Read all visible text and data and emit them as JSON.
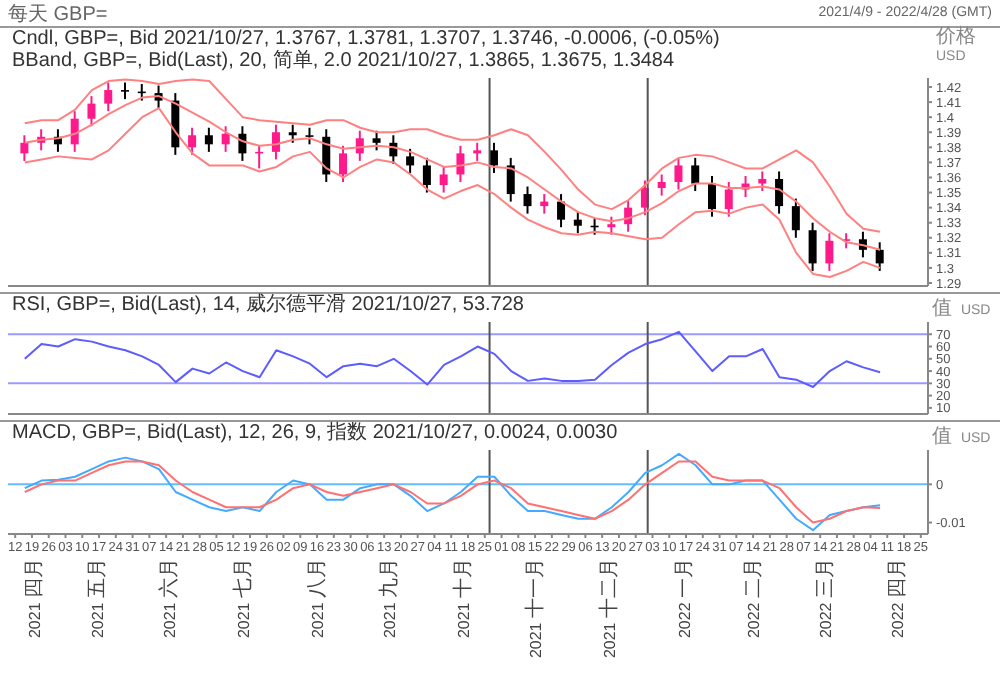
{
  "chart_data": [
    {
      "type": "candlestick",
      "title": "每天 GBP=",
      "subtitle": "2021/4/9 - 2022/4/28 (GMT)",
      "ylabel": "价格 USD",
      "annotations": [
        "Cndl, GBP=, Bid",
        "2021/10/27, 1.3767, 1.3781, 1.3707, 1.3746, -0.0006, (-0.05%)",
        "BBand, GBP=, Bid(Last), 20, 简单, 2.0",
        "2021/10/27, 1.3865, 1.3675, 1.3484"
      ],
      "x": [
        "2021-04-16",
        "2021-04-23",
        "2021-04-30",
        "2021-05-07",
        "2021-05-14",
        "2021-05-21",
        "2021-05-28",
        "2021-06-04",
        "2021-06-11",
        "2021-06-18",
        "2021-06-25",
        "2021-07-02",
        "2021-07-09",
        "2021-07-16",
        "2021-07-23",
        "2021-07-30",
        "2021-08-06",
        "2021-08-13",
        "2021-08-20",
        "2021-08-27",
        "2021-09-03",
        "2021-09-10",
        "2021-09-17",
        "2021-09-24",
        "2021-10-01",
        "2021-10-08",
        "2021-10-15",
        "2021-10-22",
        "2021-10-29",
        "2021-11-05",
        "2021-11-12",
        "2021-11-19",
        "2021-11-26",
        "2021-12-03",
        "2021-12-10",
        "2021-12-17",
        "2021-12-24",
        "2021-12-31",
        "2022-01-07",
        "2022-01-14",
        "2022-01-21",
        "2022-01-28",
        "2022-02-04",
        "2022-02-11",
        "2022-02-18",
        "2022-02-25",
        "2022-03-04",
        "2022-03-11",
        "2022-03-18",
        "2022-03-25",
        "2022-04-01",
        "2022-04-08"
      ],
      "series": [
        {
          "ohlc": [
            [
              1.376,
              1.388,
              1.371,
              1.383
            ],
            [
              1.383,
              1.392,
              1.378,
              1.387
            ],
            [
              1.387,
              1.392,
              1.377,
              1.382
            ],
            [
              1.382,
              1.404,
              1.377,
              1.399
            ],
            [
              1.399,
              1.414,
              1.394,
              1.409
            ],
            [
              1.409,
              1.423,
              1.404,
              1.418
            ],
            [
              1.418,
              1.423,
              1.412,
              1.417
            ],
            [
              1.417,
              1.422,
              1.411,
              1.416
            ],
            [
              1.416,
              1.421,
              1.406,
              1.411
            ],
            [
              1.411,
              1.416,
              1.375,
              1.38
            ],
            [
              1.38,
              1.393,
              1.375,
              1.388
            ],
            [
              1.388,
              1.393,
              1.377,
              1.382
            ],
            [
              1.382,
              1.394,
              1.377,
              1.389
            ],
            [
              1.389,
              1.394,
              1.371,
              1.376
            ],
            [
              1.376,
              1.381,
              1.366,
              1.377
            ],
            [
              1.377,
              1.395,
              1.372,
              1.39
            ],
            [
              1.39,
              1.395,
              1.383,
              1.388
            ],
            [
              1.388,
              1.393,
              1.382,
              1.387
            ],
            [
              1.387,
              1.392,
              1.357,
              1.362
            ],
            [
              1.362,
              1.381,
              1.357,
              1.376
            ],
            [
              1.376,
              1.391,
              1.371,
              1.386
            ],
            [
              1.386,
              1.391,
              1.378,
              1.383
            ],
            [
              1.383,
              1.388,
              1.369,
              1.374
            ],
            [
              1.374,
              1.379,
              1.363,
              1.368
            ],
            [
              1.368,
              1.373,
              1.35,
              1.355
            ],
            [
              1.355,
              1.367,
              1.35,
              1.362
            ],
            [
              1.362,
              1.381,
              1.357,
              1.376
            ],
            [
              1.376,
              1.383,
              1.371,
              1.378
            ],
            [
              1.378,
              1.383,
              1.363,
              1.368
            ],
            [
              1.368,
              1.373,
              1.344,
              1.349
            ],
            [
              1.349,
              1.354,
              1.336,
              1.341
            ],
            [
              1.341,
              1.349,
              1.336,
              1.344
            ],
            [
              1.344,
              1.349,
              1.327,
              1.332
            ],
            [
              1.332,
              1.337,
              1.323,
              1.328
            ],
            [
              1.328,
              1.333,
              1.322,
              1.327
            ],
            [
              1.327,
              1.334,
              1.322,
              1.329
            ],
            [
              1.329,
              1.345,
              1.324,
              1.34
            ],
            [
              1.34,
              1.358,
              1.335,
              1.353
            ],
            [
              1.353,
              1.362,
              1.348,
              1.357
            ],
            [
              1.357,
              1.373,
              1.352,
              1.368
            ],
            [
              1.368,
              1.373,
              1.351,
              1.356
            ],
            [
              1.356,
              1.361,
              1.334,
              1.339
            ],
            [
              1.339,
              1.357,
              1.334,
              1.352
            ],
            [
              1.352,
              1.361,
              1.347,
              1.356
            ],
            [
              1.356,
              1.364,
              1.351,
              1.359
            ],
            [
              1.359,
              1.364,
              1.336,
              1.341
            ],
            [
              1.341,
              1.346,
              1.32,
              1.325
            ],
            [
              1.325,
              1.33,
              1.298,
              1.303
            ],
            [
              1.303,
              1.323,
              1.298,
              1.318
            ],
            [
              1.318,
              1.323,
              1.313,
              1.319
            ],
            [
              1.319,
              1.324,
              1.307,
              1.312
            ],
            [
              1.312,
              1.317,
              1.298,
              1.303
            ]
          ],
          "colors": [
            "#ff1a8c",
            "#ff1a8c",
            "#000000",
            "#ff1a8c",
            "#ff1a8c",
            "#ff1a8c",
            "#000000",
            "#000000",
            "#000000",
            "#000000",
            "#ff1a8c",
            "#000000",
            "#ff1a8c",
            "#000000",
            "#ff1a8c",
            "#ff1a8c",
            "#000000",
            "#000000",
            "#000000",
            "#ff1a8c",
            "#ff1a8c",
            "#000000",
            "#000000",
            "#000000",
            "#000000",
            "#ff1a8c",
            "#ff1a8c",
            "#ff1a8c",
            "#000000",
            "#000000",
            "#000000",
            "#ff1a8c",
            "#000000",
            "#000000",
            "#000000",
            "#ff1a8c",
            "#ff1a8c",
            "#ff1a8c",
            "#ff1a8c",
            "#ff1a8c",
            "#000000",
            "#000000",
            "#ff1a8c",
            "#ff1a8c",
            "#ff1a8c",
            "#000000",
            "#000000",
            "#000000",
            "#ff1a8c",
            "#ff1a8c",
            "#000000",
            "#000000"
          ]
        },
        {
          "type": "line",
          "color": "#ff8080",
          "values": [
            1.396,
            1.398,
            1.398,
            1.405,
            1.418,
            1.424,
            1.425,
            1.424,
            1.422,
            1.424,
            1.425,
            1.424,
            1.412,
            1.4,
            1.398,
            1.397,
            1.396,
            1.395,
            1.398,
            1.398,
            1.393,
            1.39,
            1.39,
            1.392,
            1.392,
            1.388,
            1.385,
            1.385,
            1.388,
            1.392,
            1.388,
            1.377,
            1.365,
            1.352,
            1.342,
            1.339,
            1.345,
            1.355,
            1.366,
            1.373,
            1.375,
            1.374,
            1.37,
            1.366,
            1.366,
            1.372,
            1.378,
            1.37,
            1.354,
            1.336,
            1.326,
            1.324
          ]
        },
        {
          "type": "line",
          "color": "#ff8080",
          "values": [
            1.383,
            1.385,
            1.386,
            1.389,
            1.395,
            1.402,
            1.408,
            1.413,
            1.414,
            1.409,
            1.403,
            1.397,
            1.39,
            1.384,
            1.381,
            1.382,
            1.385,
            1.386,
            1.382,
            1.379,
            1.38,
            1.381,
            1.38,
            1.377,
            1.372,
            1.367,
            1.368,
            1.37,
            1.367,
            1.366,
            1.36,
            1.352,
            1.344,
            1.337,
            1.333,
            1.331,
            1.333,
            1.337,
            1.343,
            1.351,
            1.356,
            1.356,
            1.353,
            1.353,
            1.354,
            1.352,
            1.344,
            1.333,
            1.324,
            1.317,
            1.315,
            1.312
          ]
        },
        {
          "type": "line",
          "color": "#ff8080",
          "values": [
            1.37,
            1.372,
            1.374,
            1.373,
            1.372,
            1.378,
            1.389,
            1.4,
            1.406,
            1.39,
            1.376,
            1.368,
            1.368,
            1.368,
            1.364,
            1.367,
            1.374,
            1.377,
            1.366,
            1.36,
            1.367,
            1.372,
            1.37,
            1.362,
            1.352,
            1.346,
            1.351,
            1.355,
            1.349,
            1.34,
            1.332,
            1.327,
            1.323,
            1.322,
            1.324,
            1.323,
            1.321,
            1.319,
            1.32,
            1.329,
            1.337,
            1.338,
            1.336,
            1.34,
            1.342,
            1.332,
            1.31,
            1.296,
            1.294,
            1.298,
            1.304,
            1.3
          ]
        }
      ],
      "xlim": [
        "2021-04-09",
        "2022-04-28"
      ],
      "ylim": [
        1.288,
        1.426
      ],
      "yticks": [
        1.29,
        1.3,
        1.31,
        1.32,
        1.33,
        1.34,
        1.35,
        1.36,
        1.37,
        1.38,
        1.39,
        1.4,
        1.41,
        1.42
      ],
      "ref_lines": [
        {
          "axis": "x",
          "value": "2021-10-27",
          "color": "#555555"
        },
        {
          "axis": "x",
          "value": "2022-01-01",
          "color": "#555555"
        }
      ],
      "tick_labels": "y"
    },
    {
      "type": "line",
      "ylabel": "值 USD",
      "annotations": [
        "RSI, GBP=, Bid(Last), 14, 威尔德平滑",
        "2021/10/27, 53.728"
      ],
      "x": [
        "2021-04-16",
        "2021-04-23",
        "2021-04-30",
        "2021-05-07",
        "2021-05-14",
        "2021-05-21",
        "2021-05-28",
        "2021-06-04",
        "2021-06-11",
        "2021-06-18",
        "2021-06-25",
        "2021-07-02",
        "2021-07-09",
        "2021-07-16",
        "2021-07-23",
        "2021-07-30",
        "2021-08-06",
        "2021-08-13",
        "2021-08-20",
        "2021-08-27",
        "2021-09-03",
        "2021-09-10",
        "2021-09-17",
        "2021-09-24",
        "2021-10-01",
        "2021-10-08",
        "2021-10-15",
        "2021-10-22",
        "2021-10-29",
        "2021-11-05",
        "2021-11-12",
        "2021-11-19",
        "2021-11-26",
        "2021-12-03",
        "2021-12-10",
        "2021-12-17",
        "2021-12-24",
        "2021-12-31",
        "2022-01-07",
        "2022-01-14",
        "2022-01-21",
        "2022-01-28",
        "2022-02-04",
        "2022-02-11",
        "2022-02-18",
        "2022-02-25",
        "2022-03-04",
        "2022-03-11",
        "2022-03-18",
        "2022-03-25",
        "2022-04-01",
        "2022-04-08"
      ],
      "series": [
        {
          "color": "#5c5cff",
          "values": [
            50,
            62,
            60,
            66,
            64,
            60,
            57,
            52,
            45,
            31,
            42,
            38,
            47,
            40,
            35,
            57,
            52,
            46,
            35,
            44,
            46,
            44,
            50,
            40,
            29,
            45,
            52,
            60,
            54,
            40,
            32,
            34,
            32,
            32,
            33,
            45,
            55,
            62,
            66,
            72,
            56,
            40,
            52,
            52,
            58,
            35,
            33,
            27,
            40,
            48,
            43,
            39
          ]
        }
      ],
      "xlim": [
        "2021-04-09",
        "2022-04-28"
      ],
      "ylim": [
        5,
        80
      ],
      "yticks": [
        10,
        20,
        30,
        40,
        50,
        60,
        70
      ],
      "ref_lines": [
        {
          "axis": "y",
          "value": 70,
          "color": "#9a9aff"
        },
        {
          "axis": "y",
          "value": 30,
          "color": "#9a9aff"
        },
        {
          "axis": "x",
          "value": "2021-10-27",
          "color": "#555555"
        },
        {
          "axis": "x",
          "value": "2022-01-01",
          "color": "#555555"
        }
      ],
      "tick_labels": "y"
    },
    {
      "type": "line",
      "ylabel": "值 USD",
      "annotations": [
        "MACD, GBP=, Bid(Last), 12, 26, 9, 指数",
        "2021/10/27, 0.0024, 0.0030"
      ],
      "x": [
        "2021-04-16",
        "2021-04-23",
        "2021-04-30",
        "2021-05-07",
        "2021-05-14",
        "2021-05-21",
        "2021-05-28",
        "2021-06-04",
        "2021-06-11",
        "2021-06-18",
        "2021-06-25",
        "2021-07-02",
        "2021-07-09",
        "2021-07-16",
        "2021-07-23",
        "2021-07-30",
        "2021-08-06",
        "2021-08-13",
        "2021-08-20",
        "2021-08-27",
        "2021-09-03",
        "2021-09-10",
        "2021-09-17",
        "2021-09-24",
        "2021-10-01",
        "2021-10-08",
        "2021-10-15",
        "2021-10-22",
        "2021-10-29",
        "2021-11-05",
        "2021-11-12",
        "2021-11-19",
        "2021-11-26",
        "2021-12-03",
        "2021-12-10",
        "2021-12-17",
        "2021-12-24",
        "2021-12-31",
        "2022-01-07",
        "2022-01-14",
        "2022-01-21",
        "2022-01-28",
        "2022-02-04",
        "2022-02-11",
        "2022-02-18",
        "2022-02-25",
        "2022-03-04",
        "2022-03-11",
        "2022-03-18",
        "2022-03-25",
        "2022-04-01",
        "2022-04-08"
      ],
      "series": [
        {
          "color": "#44aaff",
          "values": [
            -0.001,
            0.001,
            0.0012,
            0.002,
            0.004,
            0.006,
            0.007,
            0.006,
            0.004,
            -0.002,
            -0.004,
            -0.006,
            -0.007,
            -0.006,
            -0.007,
            -0.002,
            0.001,
            0,
            -0.004,
            -0.004,
            -0.001,
            0,
            0,
            -0.003,
            -0.007,
            -0.005,
            -0.002,
            0.002,
            0.002,
            -0.003,
            -0.007,
            -0.007,
            -0.008,
            -0.009,
            -0.009,
            -0.006,
            -0.002,
            0.003,
            0.005,
            0.008,
            0.005,
            0,
            0,
            0.001,
            0.001,
            -0.004,
            -0.009,
            -0.012,
            -0.008,
            -0.007,
            -0.006,
            -0.0055
          ]
        },
        {
          "color": "#ff7070",
          "values": [
            -0.002,
            0,
            0.001,
            0.001,
            0.003,
            0.005,
            0.006,
            0.006,
            0.005,
            0.001,
            -0.002,
            -0.004,
            -0.006,
            -0.006,
            -0.006,
            -0.004,
            -0.001,
            0,
            -0.002,
            -0.003,
            -0.002,
            -0.001,
            0,
            -0.002,
            -0.005,
            -0.005,
            -0.003,
            0,
            0.001,
            -0.001,
            -0.005,
            -0.006,
            -0.007,
            -0.008,
            -0.009,
            -0.007,
            -0.004,
            0,
            0.003,
            0.006,
            0.006,
            0.002,
            0.001,
            0.001,
            0.001,
            -0.001,
            -0.006,
            -0.01,
            -0.009,
            -0.007,
            -0.006,
            -0.0062
          ]
        }
      ],
      "xlim": [
        "2021-04-09",
        "2022-04-28"
      ],
      "ylim": [
        -0.013,
        0.009
      ],
      "yticks": [
        -0.01,
        0
      ],
      "xticks": [
        {
          "value": "2021-04-12",
          "label": "12"
        },
        {
          "value": "2021-04-19",
          "label": "19"
        },
        {
          "value": "2021-04-26",
          "label": "26"
        },
        {
          "value": "2021-05-03",
          "label": "03"
        },
        {
          "value": "2021-05-10",
          "label": "10"
        },
        {
          "value": "2021-05-17",
          "label": "17"
        },
        {
          "value": "2021-05-24",
          "label": "24"
        },
        {
          "value": "2021-05-31",
          "label": "31"
        },
        {
          "value": "2021-06-07",
          "label": "07"
        },
        {
          "value": "2021-06-14",
          "label": "14"
        },
        {
          "value": "2021-06-21",
          "label": "21"
        },
        {
          "value": "2021-06-28",
          "label": "28"
        },
        {
          "value": "2021-07-05",
          "label": "05"
        },
        {
          "value": "2021-07-12",
          "label": "12"
        },
        {
          "value": "2021-07-19",
          "label": "19"
        },
        {
          "value": "2021-07-26",
          "label": "26"
        },
        {
          "value": "2021-08-02",
          "label": "02"
        },
        {
          "value": "2021-08-09",
          "label": "09"
        },
        {
          "value": "2021-08-16",
          "label": "16"
        },
        {
          "value": "2021-08-23",
          "label": "23"
        },
        {
          "value": "2021-08-30",
          "label": "30"
        },
        {
          "value": "2021-09-06",
          "label": "06"
        },
        {
          "value": "2021-09-13",
          "label": "13"
        },
        {
          "value": "2021-09-20",
          "label": "20"
        },
        {
          "value": "2021-09-27",
          "label": "27"
        },
        {
          "value": "2021-10-04",
          "label": "04"
        },
        {
          "value": "2021-10-11",
          "label": "11"
        },
        {
          "value": "2021-10-18",
          "label": "18"
        },
        {
          "value": "2021-10-25",
          "label": "25"
        },
        {
          "value": "2021-11-01",
          "label": "01"
        },
        {
          "value": "2021-11-08",
          "label": "08"
        },
        {
          "value": "2021-11-15",
          "label": "15"
        },
        {
          "value": "2021-11-22",
          "label": "22"
        },
        {
          "value": "2021-11-29",
          "label": "29"
        },
        {
          "value": "2021-12-06",
          "label": "06"
        },
        {
          "value": "2021-12-13",
          "label": "13"
        },
        {
          "value": "2021-12-20",
          "label": "20"
        },
        {
          "value": "2021-12-27",
          "label": "27"
        },
        {
          "value": "2022-01-03",
          "label": "03"
        },
        {
          "value": "2022-01-10",
          "label": "10"
        },
        {
          "value": "2022-01-17",
          "label": "17"
        },
        {
          "value": "2022-01-24",
          "label": "24"
        },
        {
          "value": "2022-01-31",
          "label": "31"
        },
        {
          "value": "2022-02-07",
          "label": "07"
        },
        {
          "value": "2022-02-14",
          "label": "14"
        },
        {
          "value": "2022-02-21",
          "label": "21"
        },
        {
          "value": "2022-02-28",
          "label": "28"
        },
        {
          "value": "2022-03-07",
          "label": "07"
        },
        {
          "value": "2022-03-14",
          "label": "14"
        },
        {
          "value": "2022-03-21",
          "label": "21"
        },
        {
          "value": "2022-03-28",
          "label": "28"
        },
        {
          "value": "2022-04-04",
          "label": "04"
        },
        {
          "value": "2022-04-11",
          "label": "11"
        },
        {
          "value": "2022-04-18",
          "label": "18"
        },
        {
          "value": "2022-04-25",
          "label": "25"
        }
      ],
      "x2lim": [
        "2021-04-09",
        "2022-04-28"
      ],
      "x2ticks": [
        {
          "value": "2021-04-20",
          "label": "2021 四月"
        },
        {
          "value": "2021-05-16",
          "label": "2021 五月"
        },
        {
          "value": "2021-06-15",
          "label": "2021 六月"
        },
        {
          "value": "2021-07-16",
          "label": "2021 七月"
        },
        {
          "value": "2021-08-16",
          "label": "2021 八月"
        },
        {
          "value": "2021-09-15",
          "label": "2021 九月"
        },
        {
          "value": "2021-10-16",
          "label": "2021 十月"
        },
        {
          "value": "2021-11-15",
          "label": "2021 十一月"
        },
        {
          "value": "2021-12-16",
          "label": "2021 十二月"
        },
        {
          "value": "2022-01-16",
          "label": "2022 一月"
        },
        {
          "value": "2022-02-14",
          "label": "2022 二月"
        },
        {
          "value": "2022-03-16",
          "label": "2022 三月"
        },
        {
          "value": "2022-04-15",
          "label": "2022 四月"
        }
      ],
      "ref_lines": [
        {
          "axis": "y",
          "value": 0,
          "color": "#66bbff"
        },
        {
          "axis": "x",
          "value": "2021-10-27",
          "color": "#555555"
        },
        {
          "axis": "x",
          "value": "2022-01-01",
          "color": "#555555"
        }
      ]
    }
  ]
}
